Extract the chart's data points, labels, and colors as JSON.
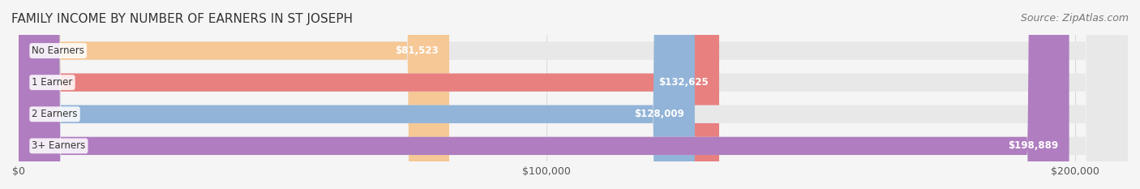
{
  "title": "FAMILY INCOME BY NUMBER OF EARNERS IN ST JOSEPH",
  "source": "Source: ZipAtlas.com",
  "categories": [
    "No Earners",
    "1 Earner",
    "2 Earners",
    "3+ Earners"
  ],
  "values": [
    81523,
    132625,
    128009,
    198889
  ],
  "labels": [
    "$81,523",
    "$132,625",
    "$128,009",
    "$198,889"
  ],
  "bar_colors": [
    "#f5c896",
    "#e88080",
    "#92b4d8",
    "#b07dc0"
  ],
  "bar_bg_color": "#e8e8e8",
  "label_bg_colors": [
    "#f5c896",
    "#e88080",
    "#92b4d8",
    "#b07dc0"
  ],
  "xlim": [
    0,
    210000
  ],
  "xticks": [
    0,
    100000,
    200000
  ],
  "xticklabels": [
    "$0",
    "$100,000",
    "$200,000"
  ],
  "background_color": "#f5f5f5",
  "title_fontsize": 11,
  "tick_fontsize": 9,
  "source_fontsize": 9,
  "bar_height": 0.55,
  "label_color": "#ffffff",
  "category_color": "#333333"
}
